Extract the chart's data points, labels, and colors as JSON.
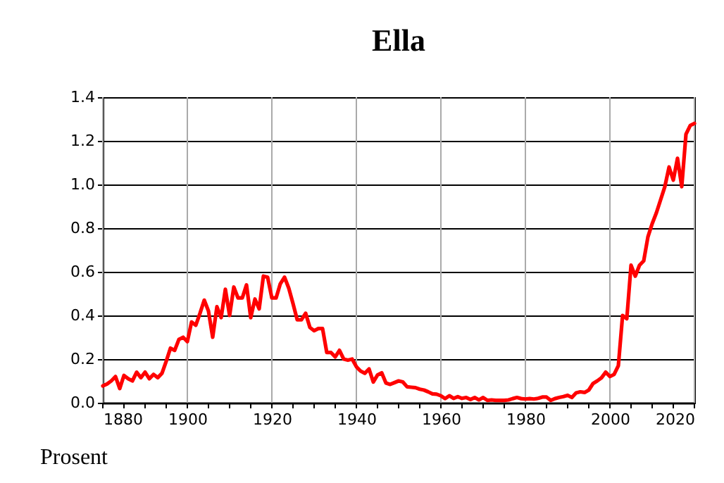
{
  "chart_data": {
    "type": "line",
    "title": "Ella",
    "ylabel": "Prosent",
    "x": [
      1880,
      1881,
      1882,
      1883,
      1884,
      1885,
      1886,
      1887,
      1888,
      1889,
      1890,
      1891,
      1892,
      1893,
      1894,
      1895,
      1896,
      1897,
      1898,
      1899,
      1900,
      1901,
      1902,
      1903,
      1904,
      1905,
      1906,
      1907,
      1908,
      1909,
      1910,
      1911,
      1912,
      1913,
      1914,
      1915,
      1916,
      1917,
      1918,
      1919,
      1920,
      1921,
      1922,
      1923,
      1924,
      1925,
      1926,
      1927,
      1928,
      1929,
      1930,
      1931,
      1932,
      1933,
      1934,
      1935,
      1936,
      1937,
      1938,
      1939,
      1940,
      1941,
      1942,
      1943,
      1944,
      1945,
      1946,
      1947,
      1948,
      1949,
      1950,
      1951,
      1952,
      1953,
      1954,
      1955,
      1956,
      1957,
      1958,
      1959,
      1960,
      1961,
      1962,
      1963,
      1964,
      1965,
      1966,
      1967,
      1968,
      1969,
      1970,
      1971,
      1972,
      1973,
      1974,
      1975,
      1976,
      1977,
      1978,
      1979,
      1980,
      1981,
      1982,
      1983,
      1984,
      1985,
      1986,
      1987,
      1988,
      1989,
      1990,
      1991,
      1992,
      1993,
      1994,
      1995,
      1996,
      1997,
      1998,
      1999,
      2000,
      2001,
      2002,
      2003,
      2004,
      2005,
      2006,
      2007,
      2008,
      2009,
      2010,
      2011,
      2012,
      2013,
      2014,
      2015,
      2016,
      2017,
      2018,
      2019,
      2020
    ],
    "series": [
      {
        "color": "#ff0000",
        "values": [
          0.077,
          0.086,
          0.1,
          0.12,
          0.065,
          0.125,
          0.11,
          0.1,
          0.14,
          0.115,
          0.14,
          0.11,
          0.13,
          0.115,
          0.135,
          0.19,
          0.25,
          0.24,
          0.29,
          0.3,
          0.28,
          0.37,
          0.355,
          0.41,
          0.47,
          0.42,
          0.3,
          0.44,
          0.39,
          0.52,
          0.4,
          0.53,
          0.48,
          0.48,
          0.54,
          0.39,
          0.475,
          0.43,
          0.58,
          0.575,
          0.48,
          0.48,
          0.545,
          0.575,
          0.525,
          0.455,
          0.38,
          0.38,
          0.41,
          0.345,
          0.33,
          0.34,
          0.34,
          0.23,
          0.23,
          0.21,
          0.24,
          0.2,
          0.195,
          0.2,
          0.165,
          0.145,
          0.135,
          0.155,
          0.095,
          0.127,
          0.137,
          0.09,
          0.084,
          0.092,
          0.1,
          0.095,
          0.073,
          0.071,
          0.069,
          0.062,
          0.058,
          0.05,
          0.041,
          0.039,
          0.032,
          0.019,
          0.032,
          0.02,
          0.028,
          0.02,
          0.024,
          0.015,
          0.024,
          0.013,
          0.024,
          0.011,
          0.013,
          0.011,
          0.011,
          0.011,
          0.013,
          0.019,
          0.024,
          0.019,
          0.017,
          0.019,
          0.017,
          0.02,
          0.026,
          0.026,
          0.011,
          0.019,
          0.024,
          0.028,
          0.034,
          0.024,
          0.045,
          0.05,
          0.047,
          0.058,
          0.088,
          0.1,
          0.114,
          0.14,
          0.12,
          0.13,
          0.17,
          0.4,
          0.385,
          0.63,
          0.58,
          0.63,
          0.65,
          0.76,
          0.82,
          0.87,
          0.93,
          0.99,
          1.08,
          1.02,
          1.12,
          0.99,
          1.23,
          1.27,
          1.28
        ]
      }
    ],
    "xlim": [
      1880,
      2020
    ],
    "xticks": [
      1880,
      {
        "value": 1885,
        "label": null
      },
      {
        "value": 1890,
        "label": null
      },
      {
        "value": 1895,
        "label": null
      },
      1900,
      {
        "value": 1905,
        "label": null
      },
      {
        "value": 1910,
        "label": null
      },
      {
        "value": 1915,
        "label": null
      },
      1920,
      {
        "value": 1925,
        "label": null
      },
      {
        "value": 1930,
        "label": null
      },
      {
        "value": 1935,
        "label": null
      },
      1940,
      {
        "value": 1945,
        "label": null
      },
      {
        "value": 1950,
        "label": null
      },
      {
        "value": 1955,
        "label": null
      },
      1960,
      {
        "value": 1965,
        "label": null
      },
      {
        "value": 1970,
        "label": null
      },
      {
        "value": 1975,
        "label": null
      },
      1980,
      {
        "value": 1985,
        "label": null
      },
      {
        "value": 1990,
        "label": null
      },
      {
        "value": 1995,
        "label": null
      },
      2000,
      {
        "value": 2005,
        "label": null
      },
      {
        "value": 2010,
        "label": null
      },
      {
        "value": 2015,
        "label": null
      },
      2020
    ],
    "ylim": [
      0,
      1.4
    ],
    "yticks": [
      {
        "value": 0,
        "label": "0.0"
      },
      {
        "value": 0.2,
        "label": "0.2"
      },
      {
        "value": 0.4,
        "label": "0.4"
      },
      {
        "value": 0.6,
        "label": "0.6"
      },
      {
        "value": 0.8,
        "label": "0.8"
      },
      {
        "value": 1.0,
        "label": "1.0"
      },
      {
        "value": 1.2,
        "label": "1.2"
      },
      {
        "value": 1.4,
        "label": "1.4"
      }
    ],
    "grid": true,
    "line_style": "solid",
    "marker": "none"
  }
}
